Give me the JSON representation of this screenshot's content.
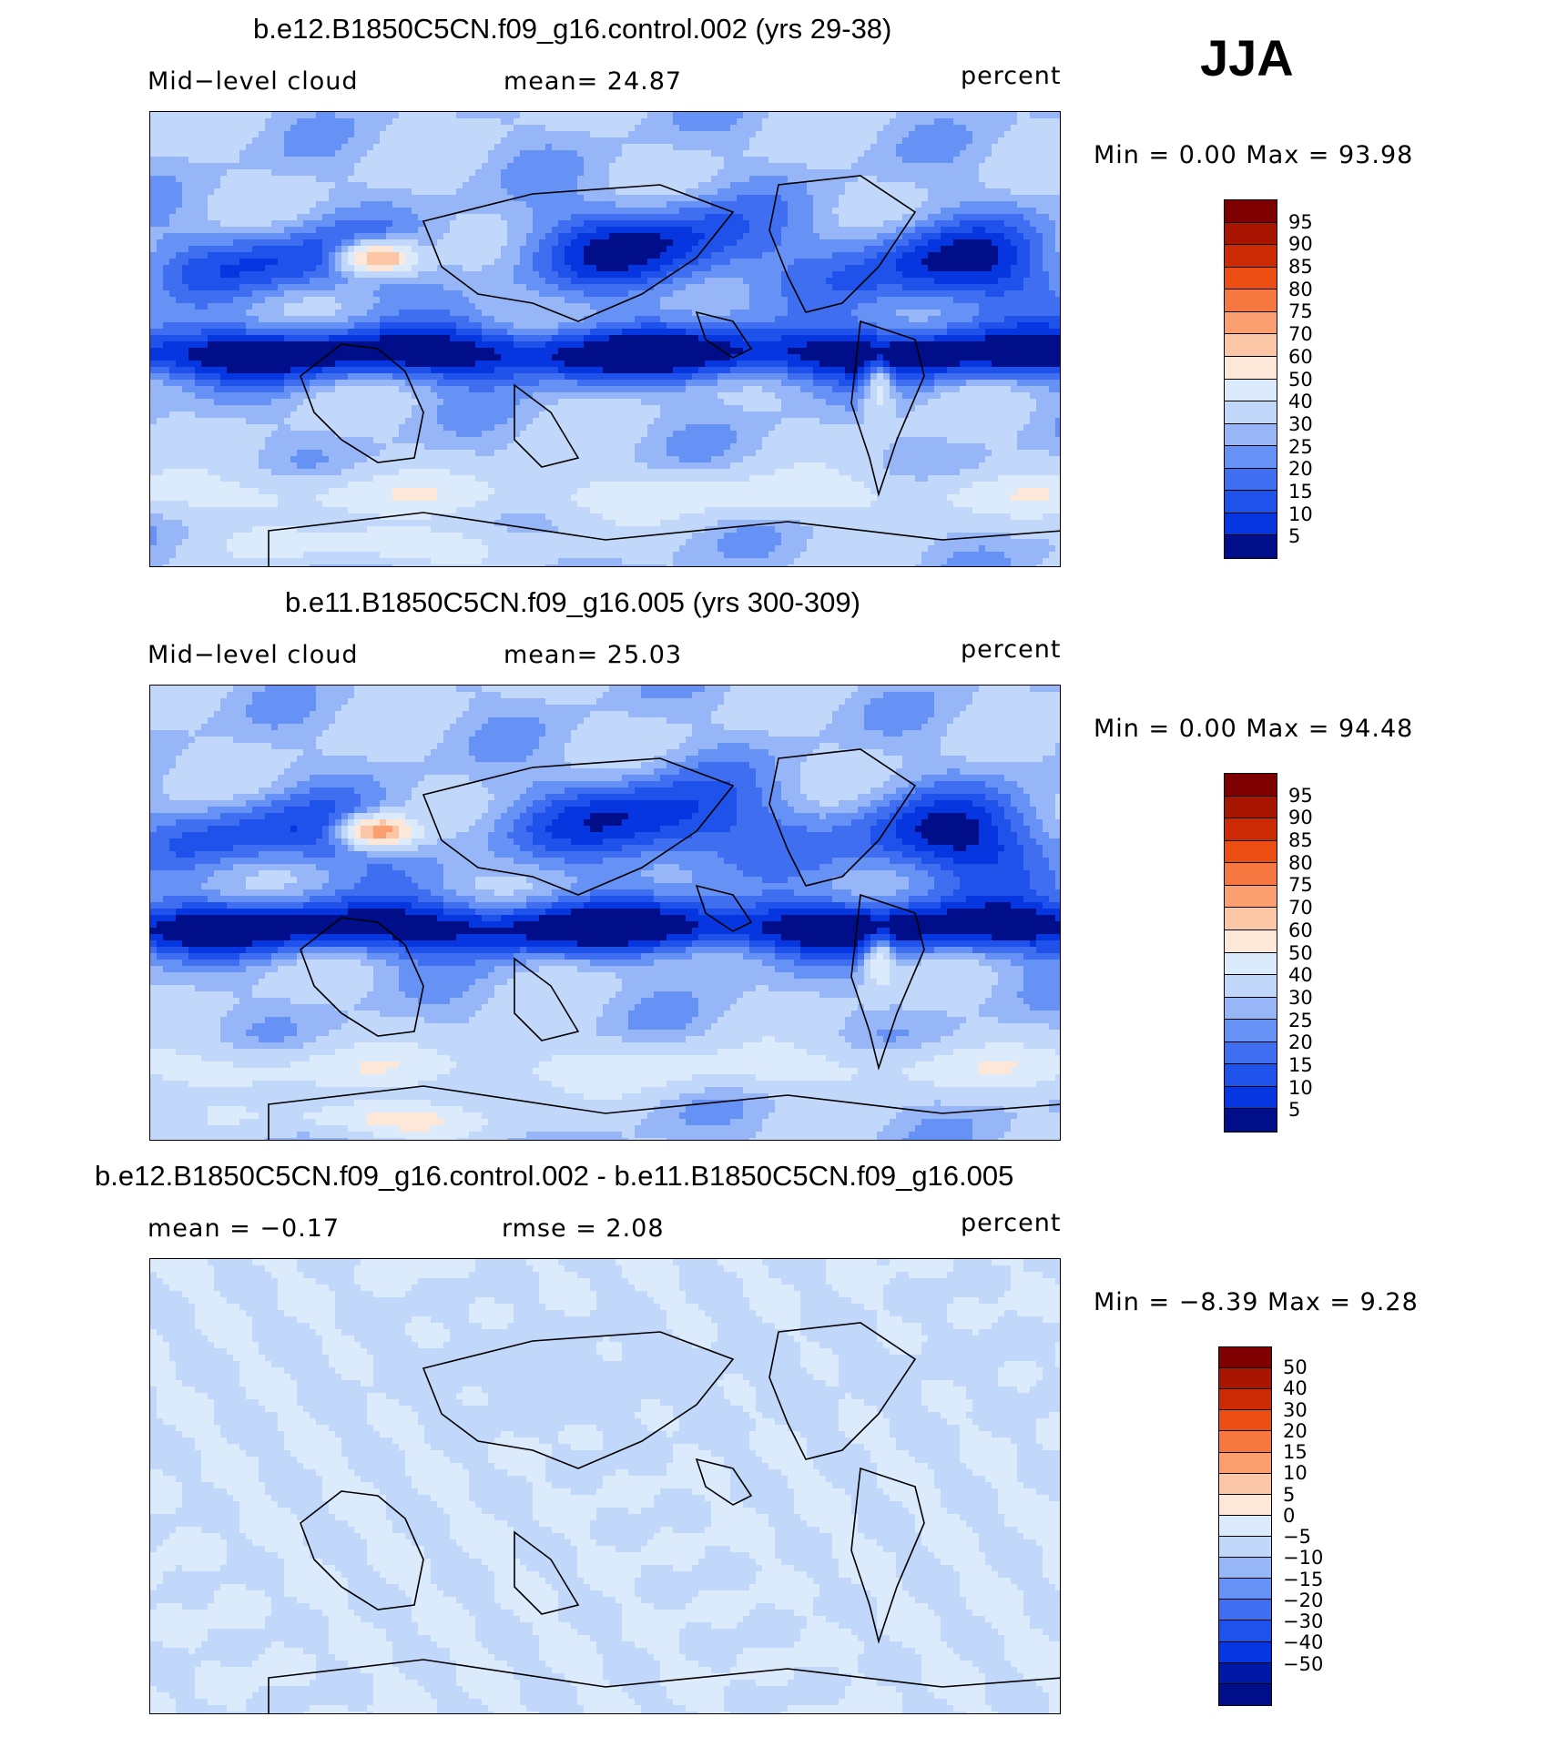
{
  "season": "JJA",
  "panels": [
    {
      "title": "b.e12.B1850C5CN.f09_g16.control.002 (yrs 29-38)",
      "left_label": "Mid−level  cloud",
      "center_label": "mean=   24.87",
      "units": "percent",
      "stats": "Min  =     0.00  Max  =    93.98",
      "colorbar_ticks": [
        "95",
        "90",
        "85",
        "80",
        "75",
        "70",
        "60",
        "50",
        "40",
        "30",
        "25",
        "20",
        "15",
        "10",
        "5"
      ]
    },
    {
      "title": "b.e11.B1850C5CN.f09_g16.005 (yrs 300-309)",
      "left_label": "Mid−level  cloud",
      "center_label": "mean=   25.03",
      "units": "percent",
      "stats": "Min  =     0.00  Max  =    94.48",
      "colorbar_ticks": [
        "95",
        "90",
        "85",
        "80",
        "75",
        "70",
        "60",
        "50",
        "40",
        "30",
        "25",
        "20",
        "15",
        "10",
        "5"
      ]
    },
    {
      "title": "b.e12.B1850C5CN.f09_g16.control.002 - b.e11.B1850C5CN.f09_g16.005",
      "left_label": "mean  =    −0.17",
      "center_label": "rmse  =     2.08",
      "units": "percent",
      "stats": "Min  =   −8.39  Max  =     9.28",
      "colorbar_ticks": [
        "50",
        "40",
        "30",
        "20",
        "15",
        "10",
        "5",
        "0",
        "−5",
        "−10",
        "−15",
        "−20",
        "−30",
        "−40",
        "−50"
      ]
    }
  ],
  "colors": {
    "scale": [
      "#000e8a",
      "#0018a8",
      "#0026cc",
      "#0636e0",
      "#1f52ea",
      "#3f6ff0",
      "#6692f6",
      "#97b6f8",
      "#c2d8fa",
      "#dcebfc",
      "#fde7d8",
      "#fbc6a6",
      "#fb9e70",
      "#f6773f",
      "#ea4e12",
      "#cc2a05",
      "#a81500",
      "#7f0000"
    ],
    "colorbar_abs": [
      "#7f0000",
      "#a81500",
      "#cc2a05",
      "#ea4e12",
      "#f6773f",
      "#fb9e70",
      "#fbc6a6",
      "#fde7d8",
      "#dcebfc",
      "#c2d8fa",
      "#97b6f8",
      "#6692f6",
      "#3f6ff0",
      "#1f52ea",
      "#0636e0",
      "#000e8a"
    ],
    "colorbar_diff": [
      "#7f0000",
      "#a81500",
      "#cc2a05",
      "#ea4e12",
      "#f6773f",
      "#fb9e70",
      "#fbc6a6",
      "#fde7d8",
      "#dcebfc",
      "#c2d8fa",
      "#97b6f8",
      "#6692f6",
      "#3f6ff0",
      "#1f52ea",
      "#0636e0",
      "#0018a8",
      "#000e8a"
    ]
  }
}
